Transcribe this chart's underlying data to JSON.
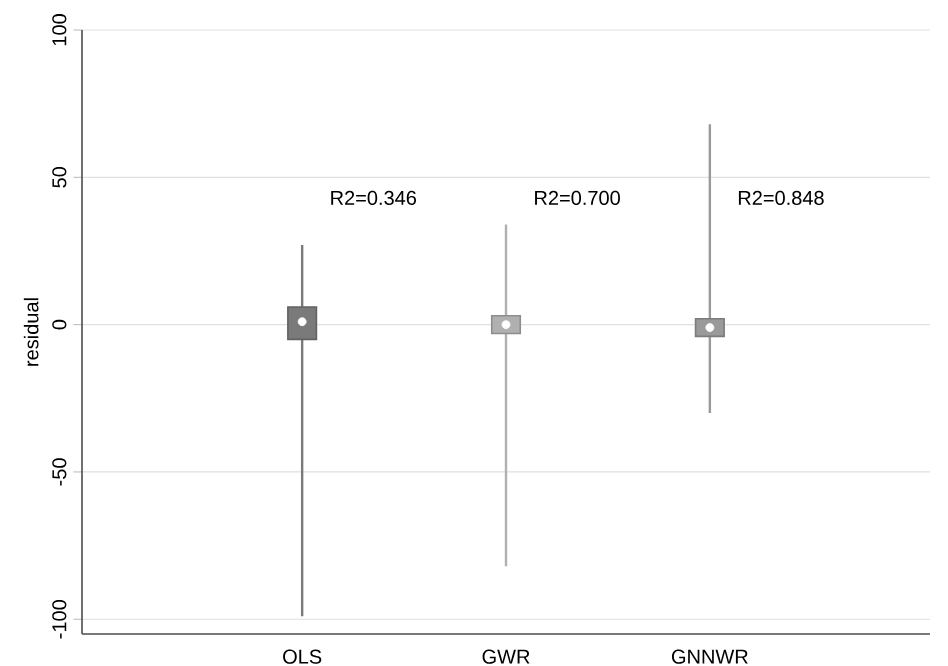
{
  "chart_data": {
    "type": "box",
    "ylabel": "residual",
    "categories": [
      "OLS",
      "GWR",
      "GNNWR"
    ],
    "boxes": [
      {
        "low": -99,
        "q1": -5,
        "median": 1,
        "q3": 6,
        "high": 27
      },
      {
        "low": -82,
        "q1": -3,
        "median": 0,
        "q3": 3,
        "high": 34
      },
      {
        "low": -30,
        "q1": -4,
        "median": -1,
        "q3": 2,
        "high": 68
      }
    ],
    "colors": [
      "#7a7a7a",
      "#b0b0b0",
      "#9a9a9a"
    ],
    "ylim": [
      -105,
      100
    ],
    "yticks": [
      -100,
      -50,
      0,
      50,
      100
    ],
    "grid": "y",
    "annotations": [
      "R2=0.346",
      "R2=0.700",
      "R2=0.848"
    ]
  }
}
